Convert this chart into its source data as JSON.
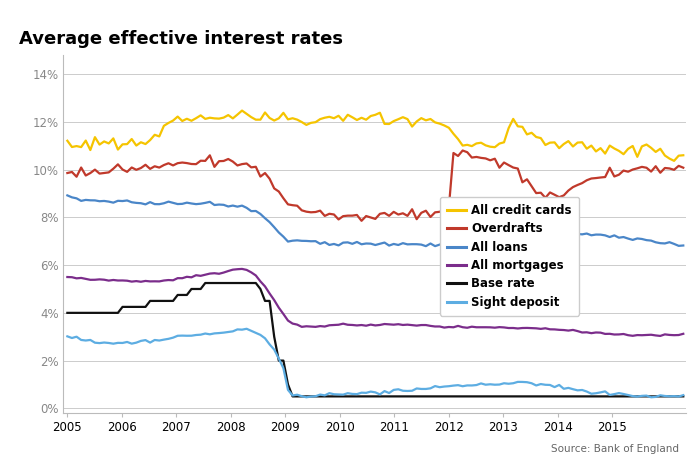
{
  "title": "Average effective interest rates",
  "source": "Source: Bank of England",
  "background_color": "#ffffff",
  "grid_color": "#cccccc",
  "y_ticks": [
    0,
    2,
    4,
    6,
    8,
    10,
    12,
    14
  ],
  "y_labels": [
    "0%",
    "2%",
    "4%",
    "6%",
    "8%",
    "10%",
    "12%",
    "14%"
  ],
  "x_ticks": [
    2005,
    2006,
    2007,
    2008,
    2009,
    2010,
    2011,
    2012,
    2013,
    2014,
    2015
  ],
  "series": {
    "credit_cards": {
      "label": "All credit cards",
      "color": "#f5c400",
      "linewidth": 1.6
    },
    "overdrafts": {
      "label": "Overdrafts",
      "color": "#c0392b",
      "linewidth": 1.6
    },
    "loans": {
      "label": "All loans",
      "color": "#4a86c8",
      "linewidth": 1.6
    },
    "mortgages": {
      "label": "All mortgages",
      "color": "#7b2d8b",
      "linewidth": 1.6
    },
    "base_rate": {
      "label": "Base rate",
      "color": "#111111",
      "linewidth": 1.6
    },
    "sight_deposit": {
      "label": "Sight deposit",
      "color": "#5dade2",
      "linewidth": 1.6
    }
  }
}
